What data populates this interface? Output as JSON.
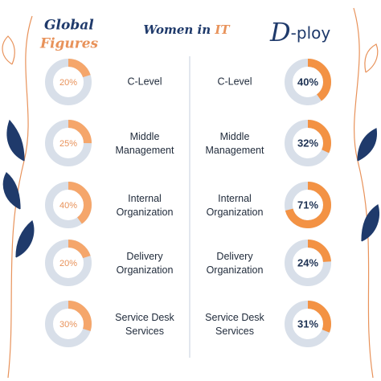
{
  "chart_data": {
    "type": "donut",
    "title": [
      "Women in",
      "IT"
    ],
    "categories": [
      "C-Level",
      "Middle Management",
      "Internal Organization",
      "Delivery Organization",
      "Service Desk Services"
    ],
    "series": [
      {
        "name": [
          "Global",
          "Figures"
        ],
        "color": "#f5a66b",
        "label_color": "#e8925a",
        "track": "#d8dfe9",
        "values": [
          20,
          25,
          40,
          20,
          30
        ],
        "value_labels": [
          "20%",
          "25%",
          "40%",
          "20%",
          "30%"
        ]
      },
      {
        "name": [
          "D",
          "-ploy"
        ],
        "color": "#f39244",
        "label_color": "#1f3354",
        "track": "#d8dfe9",
        "values": [
          40,
          32,
          71,
          24,
          31
        ],
        "value_labels": [
          "40%",
          "32%",
          "71%",
          "24%",
          "31%"
        ]
      }
    ]
  }
}
